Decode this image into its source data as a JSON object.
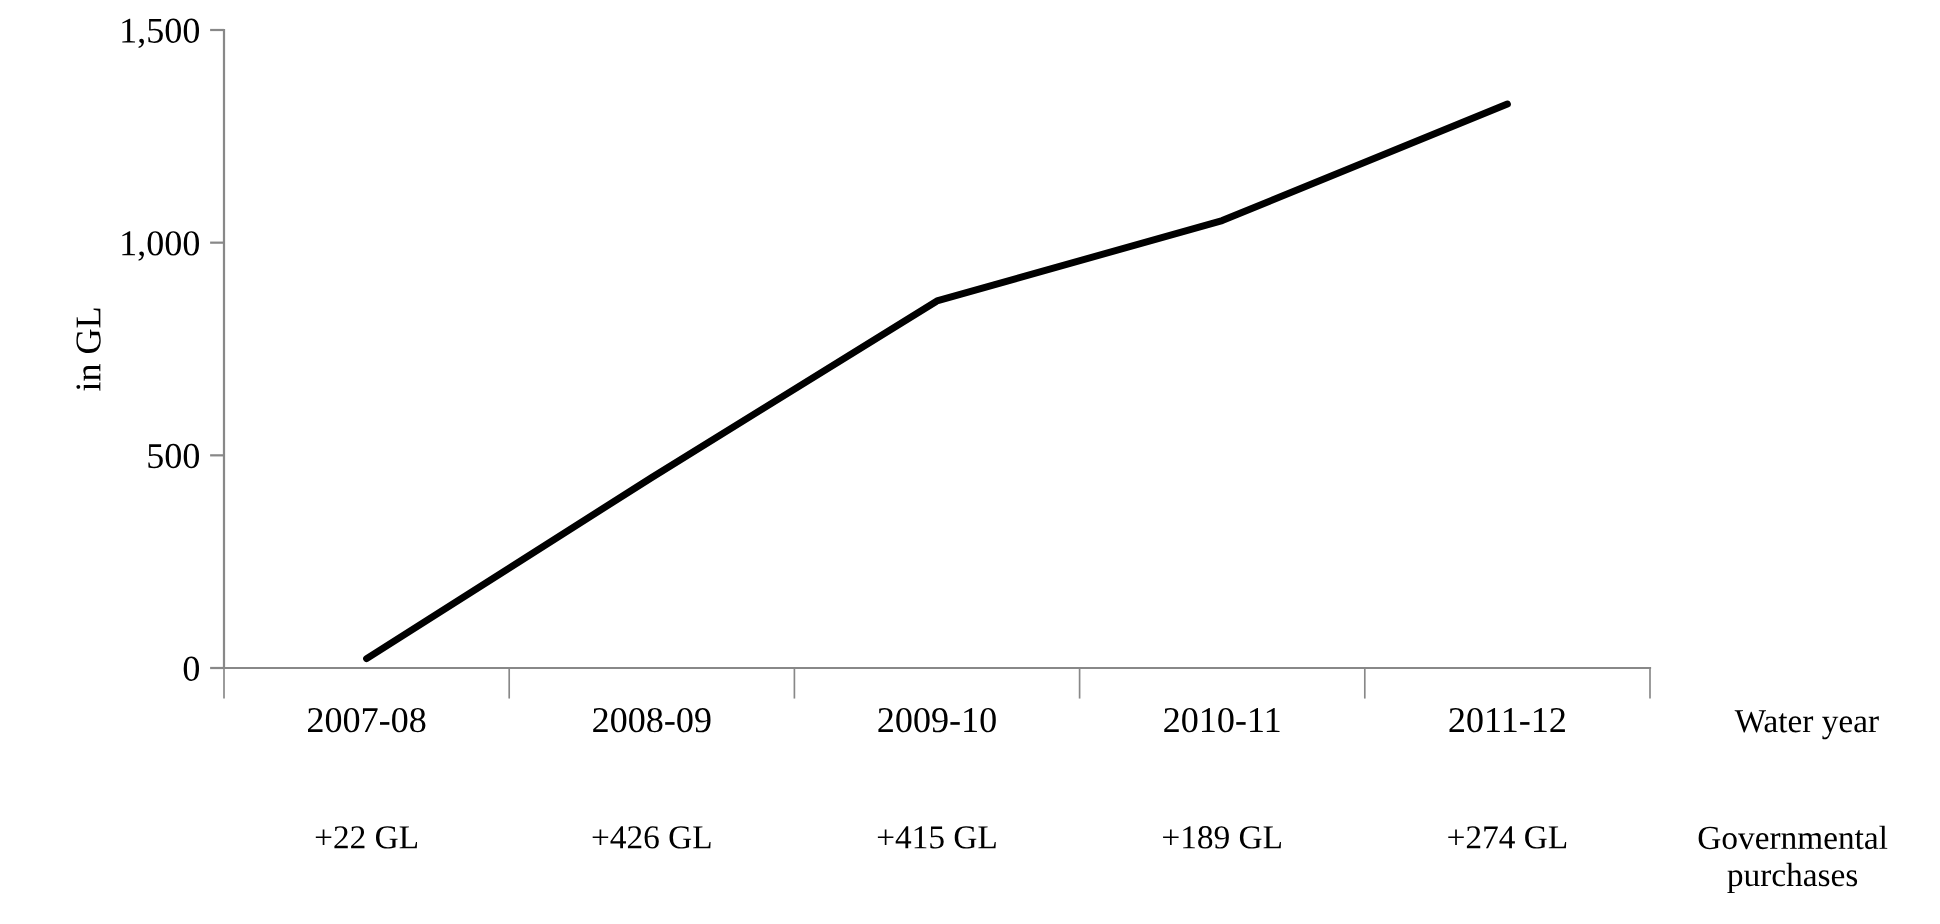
{
  "chart_data": {
    "type": "line",
    "ylabel": "in GL",
    "xlabel": "Water year",
    "categories": [
      "2007-08",
      "2008-09",
      "2009-10",
      "2010-11",
      "2011-12"
    ],
    "series": [
      {
        "color": "#000000",
        "values": [
          22,
          448,
          863,
          1052,
          1326
        ]
      }
    ],
    "ylim": [
      0,
      1500
    ],
    "yticks": [
      0,
      500,
      {
        "value": 1000,
        "label": "1,000"
      },
      {
        "value": 1500,
        "label": "1,500"
      }
    ],
    "grid": false,
    "legend": false,
    "marker": "none",
    "line_style": "solid",
    "annotations": [
      "Governmental\npurchases",
      "+22 GL",
      "+426 GL",
      "+415 GL",
      "+189 GL",
      "+274 GL"
    ]
  }
}
